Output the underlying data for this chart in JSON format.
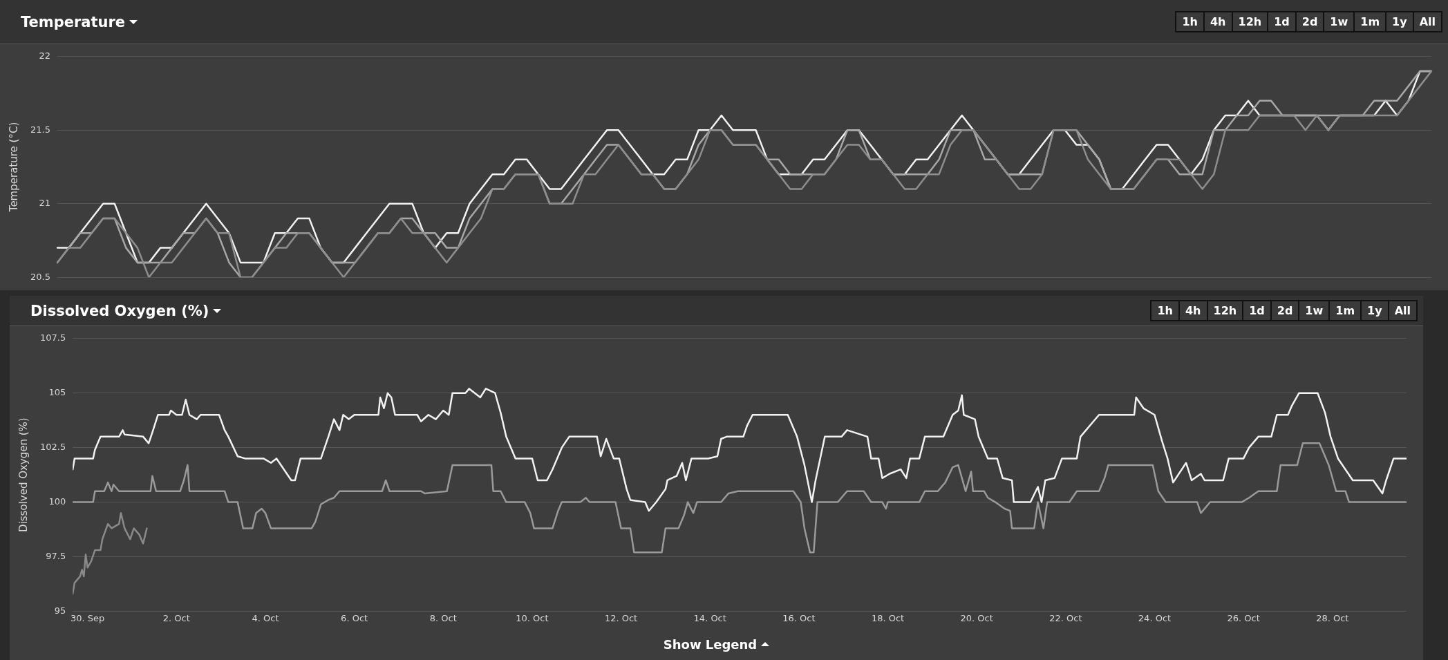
{
  "chart_data": [
    {
      "type": "line",
      "title": "Temperature",
      "ylabel": "Temperature (°C)",
      "annotations": [
        "1h",
        "4h",
        "12h",
        "1d",
        "2d",
        "1w",
        "1m",
        "1y",
        "All"
      ],
      "categories": [
        null,
        null,
        null,
        null,
        null,
        null,
        null,
        null,
        null,
        null,
        null,
        null,
        null,
        null,
        null,
        null,
        null,
        null,
        null,
        null,
        null,
        null,
        null,
        null,
        null,
        null,
        null,
        null,
        null,
        null,
        null,
        null,
        null,
        null,
        null,
        null,
        null,
        null,
        null,
        null,
        null,
        null,
        null,
        null,
        null,
        null,
        null,
        null,
        null,
        null,
        null,
        null,
        null,
        null,
        null,
        null,
        null,
        null,
        null,
        null,
        null,
        null,
        null,
        null,
        null,
        null,
        null,
        null,
        null,
        null,
        null,
        null,
        null,
        null,
        null,
        null,
        null,
        null,
        null,
        null,
        null,
        null,
        null,
        null,
        null,
        null,
        null,
        null,
        null,
        null,
        null,
        null,
        null,
        null,
        null,
        null,
        null,
        null,
        null,
        null,
        null,
        null,
        null,
        null,
        null,
        null,
        null,
        null,
        null,
        null,
        null,
        null,
        null,
        null,
        null,
        null,
        null,
        null,
        null,
        null,
        null
      ],
      "ylim": [
        20.5,
        22
      ],
      "yticks": [
        20.5,
        21,
        21.5,
        22
      ],
      "tick_labels": "y",
      "grid": "y",
      "legend": false,
      "line_style": "solid",
      "series": [
        {
          "color": "#8e8e8e",
          "values": [
            20.6,
            20.7,
            20.7,
            20.8,
            20.9,
            20.9,
            20.8,
            20.7,
            20.5,
            20.6,
            20.6,
            20.7,
            20.8,
            20.9,
            20.8,
            20.8,
            20.5,
            20.5,
            20.6,
            20.7,
            20.7,
            20.8,
            20.8,
            20.7,
            20.6,
            20.5,
            20.6,
            20.7,
            20.8,
            20.8,
            20.9,
            20.8,
            20.8,
            20.7,
            20.6,
            20.7,
            20.8,
            20.9,
            21.1,
            21.1,
            21.2,
            21.2,
            21.2,
            21.0,
            21.0,
            21.0,
            21.2,
            21.2,
            21.3,
            21.4,
            21.3,
            21.2,
            21.2,
            21.1,
            21.1,
            21.2,
            21.3,
            21.5,
            21.5,
            21.4,
            21.4,
            21.4,
            21.3,
            21.2,
            21.1,
            21.1,
            21.2,
            21.2,
            21.3,
            21.4,
            21.4,
            21.3,
            21.3,
            21.2,
            21.1,
            21.1,
            21.2,
            21.2,
            21.4,
            21.5,
            21.5,
            21.4,
            21.3,
            21.2,
            21.1,
            21.1,
            21.2,
            21.5,
            21.5,
            21.5,
            21.3,
            21.2,
            21.1,
            21.1,
            21.1,
            21.2,
            21.3,
            21.3,
            21.3,
            21.2,
            21.1,
            21.2,
            21.5,
            21.5,
            21.5,
            21.6,
            21.6,
            21.6,
            21.6,
            21.5,
            21.6,
            21.5,
            21.6,
            21.6,
            21.6,
            21.6,
            21.6,
            21.6,
            21.7,
            21.8,
            21.9
          ]
        },
        {
          "color": "#a8a8a8",
          "values": [
            20.6,
            20.7,
            20.8,
            20.8,
            20.9,
            20.9,
            20.7,
            20.6,
            20.6,
            20.6,
            20.7,
            20.8,
            20.8,
            20.9,
            20.8,
            20.6,
            20.5,
            20.5,
            20.6,
            20.7,
            20.8,
            20.8,
            20.8,
            20.7,
            20.6,
            20.6,
            20.6,
            20.7,
            20.8,
            20.8,
            20.9,
            20.9,
            20.8,
            20.8,
            20.7,
            20.7,
            20.9,
            21.0,
            21.1,
            21.1,
            21.2,
            21.2,
            21.2,
            21.0,
            21.0,
            21.1,
            21.2,
            21.3,
            21.4,
            21.4,
            21.3,
            21.2,
            21.2,
            21.1,
            21.1,
            21.2,
            21.4,
            21.5,
            21.5,
            21.4,
            21.4,
            21.4,
            21.3,
            21.3,
            21.2,
            21.2,
            21.2,
            21.2,
            21.3,
            21.5,
            21.5,
            21.3,
            21.3,
            21.2,
            21.2,
            21.2,
            21.2,
            21.3,
            21.5,
            21.5,
            21.5,
            21.3,
            21.3,
            21.2,
            21.2,
            21.2,
            21.2,
            21.5,
            21.5,
            21.5,
            21.4,
            21.3,
            21.1,
            21.1,
            21.1,
            21.2,
            21.3,
            21.3,
            21.2,
            21.2,
            21.2,
            21.5,
            21.5,
            21.6,
            21.6,
            21.7,
            21.7,
            21.6,
            21.6,
            21.6,
            21.6,
            21.6,
            21.6,
            21.6,
            21.6,
            21.7,
            21.7,
            21.7,
            21.8,
            21.9,
            21.9
          ]
        },
        {
          "color": "#f2f2f2",
          "values": [
            20.7,
            20.7,
            20.8,
            20.9,
            21.0,
            21.0,
            20.8,
            20.6,
            20.6,
            20.7,
            20.7,
            20.8,
            20.9,
            21.0,
            20.9,
            20.8,
            20.6,
            20.6,
            20.6,
            20.8,
            20.8,
            20.9,
            20.9,
            20.7,
            20.6,
            20.6,
            20.7,
            20.8,
            20.9,
            21.0,
            21.0,
            21.0,
            20.8,
            20.7,
            20.8,
            20.8,
            21.0,
            21.1,
            21.2,
            21.2,
            21.3,
            21.3,
            21.2,
            21.1,
            21.1,
            21.2,
            21.3,
            21.4,
            21.5,
            21.5,
            21.4,
            21.3,
            21.2,
            21.2,
            21.3,
            21.3,
            21.5,
            21.5,
            21.6,
            21.5,
            21.5,
            21.5,
            21.3,
            21.2,
            21.2,
            21.2,
            21.3,
            21.3,
            21.4,
            21.5,
            21.5,
            21.4,
            21.3,
            21.2,
            21.2,
            21.3,
            21.3,
            21.4,
            21.5,
            21.6,
            21.5,
            21.4,
            21.3,
            21.2,
            21.2,
            21.3,
            21.4,
            21.5,
            21.5,
            21.4,
            21.4,
            21.3,
            21.1,
            21.1,
            21.2,
            21.3,
            21.4,
            21.4,
            21.3,
            21.2,
            21.3,
            21.5,
            21.6,
            21.6,
            21.7,
            21.6,
            21.6,
            21.6,
            21.6,
            21.6,
            21.6,
            21.5,
            21.6,
            21.6,
            21.6,
            21.6,
            21.7,
            21.6,
            21.7,
            21.9,
            21.9
          ]
        }
      ]
    },
    {
      "type": "line",
      "title": "Dissolved Oxygen (%)",
      "ylabel": "Dissolved Oxygen (%)",
      "annotations": [
        "1h",
        "4h",
        "12h",
        "1d",
        "2d",
        "1w",
        "1m",
        "1y",
        "All",
        "Show Legend"
      ],
      "xlim": [
        "--09-29T16:00",
        "--10-29T16:00"
      ],
      "xticks": [
        {
          "value": "--09-30",
          "label": "30. Sep"
        },
        {
          "value": "--10-02",
          "label": "2. Oct"
        },
        {
          "value": "--10-04",
          "label": "4. Oct"
        },
        {
          "value": "--10-06",
          "label": "6. Oct"
        },
        {
          "value": "--10-08",
          "label": "8. Oct"
        },
        {
          "value": "--10-10",
          "label": "10. Oct"
        },
        {
          "value": "--10-12",
          "label": "12. Oct"
        },
        {
          "value": "--10-14",
          "label": "14. Oct"
        },
        {
          "value": "--10-16",
          "label": "16. Oct"
        },
        {
          "value": "--10-18",
          "label": "18. Oct"
        },
        {
          "value": "--10-20",
          "label": "20. Oct"
        },
        {
          "value": "--10-22",
          "label": "22. Oct"
        },
        {
          "value": "--10-24",
          "label": "24. Oct"
        },
        {
          "value": "--10-26",
          "label": "26. Oct"
        },
        {
          "value": "--10-28",
          "label": "28. Oct"
        }
      ],
      "ylim": [
        95,
        107.5
      ],
      "yticks": [
        95,
        97.5,
        100,
        102.5,
        105,
        107.5
      ],
      "grid": "y",
      "legend": false,
      "line_style": "solid",
      "series": [
        {
          "color": "#8a8a8a",
          "x": [
            "--09-29T16:00",
            "--09-29T17:00",
            "--09-29T20:00",
            "--09-29T21:00",
            "--09-29T22:00",
            "--09-29T23:00",
            "--09-30T00:00",
            "--09-30T02:00",
            "--09-30T04:00",
            "--09-30T07:00",
            "--09-30T08:00",
            "--09-30T11:00",
            "--09-30T13:00",
            "--09-30T17:00",
            "--09-30T18:00",
            "--09-30T20:00",
            "--09-30T23:00",
            "--10-01T01:00",
            "--10-01T04:00",
            "--10-01T06:00",
            "--10-01T08:00"
          ],
          "values": [
            95.8,
            96.3,
            96.6,
            96.9,
            96.6,
            97.6,
            97,
            97.3,
            97.8,
            97.8,
            98.3,
            99,
            98.8,
            99,
            99.5,
            98.8,
            98.3,
            98.8,
            98.5,
            98.1,
            98.8
          ]
        },
        {
          "color": "#9a9a9a",
          "x": [
            "--09-29T16:00",
            "--09-30T03:00",
            "--09-30T04:00",
            "--09-30T09:00",
            "--09-30T11:00",
            "--09-30T13:00",
            "--09-30T14:00",
            "--09-30T17:00",
            "--10-01T10:00",
            "--10-01T11:00",
            "--10-01T13:00",
            "--10-02T02:00",
            "--10-02T04:00",
            "--10-02T06:00",
            "--10-02T07:00",
            "--10-03T02:00",
            "--10-03T04:00",
            "--10-03T09:00",
            "--10-03T12:00",
            "--10-03T17:00",
            "--10-03T19:00",
            "--10-03T22:00",
            "--10-04T00:00",
            "--10-04T03:00",
            "--10-05T01:00",
            "--10-05T03:00",
            "--10-05T06:00",
            "--10-05T10:00",
            "--10-05T13:00",
            "--10-05T16:00",
            "--10-06T15:00",
            "--10-06T17:00",
            "--10-06T19:00",
            "--10-07T12:00",
            "--10-07T14:00",
            "--10-08T02:00",
            "--10-08T05:00",
            "--10-09T02:00",
            "--10-09T03:00",
            "--10-09T07:00",
            "--10-09T10:00",
            "--10-09T20:00",
            "--10-09T23:00",
            "--10-10T01:00",
            "--10-10T11:00",
            "--10-10T14:00",
            "--10-10T16:00",
            "--10-11T02:00",
            "--10-11T05:00",
            "--10-11T07:00",
            "--10-11T21:00",
            "--10-12T00:00",
            "--10-12T05:00",
            "--10-12T07:00",
            "--10-12T22:00",
            "--10-13T00:00",
            "--10-13T07:00",
            "--10-13T10:00",
            "--10-13T12:00",
            "--10-13T15:00",
            "--10-13T17:00",
            "--10-13T23:00",
            "--10-14T06:00",
            "--10-14T10:00",
            "--10-14T15:00",
            "--10-15T21:00",
            "--10-16T01:00",
            "--10-16T03:00",
            "--10-16T06:00",
            "--10-16T08:00",
            "--10-16T10:00",
            "--10-16T21:00",
            "--10-17T02:00",
            "--10-17T11:00",
            "--10-17T15:00",
            "--10-17T21:00",
            "--10-17T23:00",
            "--10-18T00:00",
            "--10-18T17:00",
            "--10-18T20:00",
            "--10-19T03:00",
            "--10-19T07:00",
            "--10-19T11:00",
            "--10-19T14:00",
            "--10-19T18:00",
            "--10-19T21:00",
            "--10-19T22:00",
            "--10-20T04:00",
            "--10-20T06:00",
            "--10-20T10:00",
            "--10-20T15:00",
            "--10-20T18:00",
            "--10-20T19:00",
            "--10-21T07:00",
            "--10-21T09:00",
            "--10-21T12:00",
            "--10-21T14:00",
            "--10-22T02:00",
            "--10-22T06:00",
            "--10-22T18:00",
            "--10-22T21:00",
            "--10-22T23:00",
            "--10-23T23:00",
            "--10-24T02:00",
            "--10-24T06:00",
            "--10-24T23:00",
            "--10-25T01:00",
            "--10-25T06:00",
            "--10-25T23:00",
            "--10-26T03:00",
            "--10-26T08:00",
            "--10-26T18:00",
            "--10-26T20:00",
            "--10-27T05:00",
            "--10-27T08:00",
            "--10-27T17:00",
            "--10-27T22:00",
            "--10-28T02:00",
            "--10-28T07:00",
            "--10-28T09:00",
            "--10-29T16:00"
          ],
          "values": [
            100,
            100,
            100.5,
            100.5,
            100.9,
            100.5,
            100.8,
            100.5,
            100.5,
            101.2,
            100.5,
            100.5,
            101,
            101.7,
            100.5,
            100.5,
            100,
            100,
            98.8,
            98.8,
            99.5,
            99.7,
            99.5,
            98.8,
            98.8,
            99.1,
            99.9,
            100.1,
            100.2,
            100.5,
            100.5,
            101,
            100.5,
            100.5,
            100.4,
            100.5,
            101.7,
            101.7,
            100.5,
            100.5,
            100,
            100,
            99.5,
            98.8,
            98.8,
            99.6,
            100,
            100,
            100.2,
            100,
            100,
            98.8,
            98.8,
            97.7,
            97.7,
            98.8,
            98.8,
            99.4,
            100,
            99.5,
            100,
            100,
            100,
            100.4,
            100.5,
            100.5,
            100,
            98.8,
            97.7,
            97.7,
            100,
            100,
            100.5,
            100.5,
            100,
            100,
            99.7,
            100,
            100,
            100.5,
            100.5,
            100.9,
            101.6,
            101.7,
            100.5,
            101.4,
            100.5,
            100.5,
            100.2,
            100,
            99.7,
            99.6,
            98.8,
            98.8,
            100,
            98.8,
            100,
            100,
            100.5,
            100.5,
            101.1,
            101.7,
            101.7,
            100.5,
            100,
            100,
            99.5,
            100,
            100,
            100.2,
            100.5,
            100.5,
            101.7,
            101.7,
            102.7,
            102.7,
            101.7,
            100.5,
            100.5,
            100,
            100
          ]
        },
        {
          "color": "#f2f2f2",
          "x": [
            "--09-29T16:00",
            "--09-29T17:00",
            "--09-30T03:00",
            "--09-30T04:00",
            "--09-30T07:00",
            "--09-30T17:00",
            "--09-30T19:00",
            "--09-30T20:00",
            "--10-01T06:00",
            "--10-01T09:00",
            "--10-01T11:00",
            "--10-01T14:00",
            "--10-01T20:00",
            "--10-01T21:00",
            "--10-02T00:00",
            "--10-02T03:00",
            "--10-02T05:00",
            "--10-02T07:00",
            "--10-02T11:00",
            "--10-02T13:00",
            "--10-02T23:00",
            "--10-03T02:00",
            "--10-03T04:00",
            "--10-03T09:00",
            "--10-03T13:00",
            "--10-03T23:00",
            "--10-04T03:00",
            "--10-04T06:00",
            "--10-04T10:00",
            "--10-04T14:00",
            "--10-04T16:00",
            "--10-04T19:00",
            "--10-05T06:00",
            "--10-05T10:00",
            "--10-05T13:00",
            "--10-05T16:00",
            "--10-05T18:00",
            "--10-05T21:00",
            "--10-06T00:00",
            "--10-06T13:00",
            "--10-06T14:00",
            "--10-06T16:00",
            "--10-06T18:00",
            "--10-06T20:00",
            "--10-06T22:00",
            "--10-07T10:00",
            "--10-07T12:00",
            "--10-07T16:00",
            "--10-07T20:00",
            "--10-08T00:00",
            "--10-08T03:00",
            "--10-08T05:00",
            "--10-08T12:00",
            "--10-08T14:00",
            "--10-08T20:00",
            "--10-08T23:00",
            "--10-09T04:00",
            "--10-09T07:00",
            "--10-09T10:00",
            "--10-09T15:00",
            "--10-10T00:00",
            "--10-10T03:00",
            "--10-10T08:00",
            "--10-10T11:00",
            "--10-10T16:00",
            "--10-10T20:00",
            "--10-11T11:00",
            "--10-11T13:00",
            "--10-11T16:00",
            "--10-11T20:00",
            "--10-11T23:00",
            "--10-12T03:00",
            "--10-12T05:00",
            "--10-12T13:00",
            "--10-12T15:00",
            "--10-12T19:00",
            "--10-13T00:00",
            "--10-13T01:00",
            "--10-13T06:00",
            "--10-13T09:00",
            "--10-13T11:00",
            "--10-13T14:00",
            "--10-13T23:00",
            "--10-14T04:00",
            "--10-14T06:00",
            "--10-14T09:00",
            "--10-14T18:00",
            "--10-14T20:00",
            "--10-14T23:00",
            "--10-15T18:00",
            "--10-15T23:00",
            "--10-16T03:00",
            "--10-16T07:00",
            "--10-16T09:00",
            "--10-16T14:00",
            "--10-16T23:00",
            "--10-17T02:00",
            "--10-17T13:00",
            "--10-17T15:00",
            "--10-17T19:00",
            "--10-17T21:00",
            "--10-18T01:00",
            "--10-18T07:00",
            "--10-18T10:00",
            "--10-18T12:00",
            "--10-18T17:00",
            "--10-18T20:00",
            "--10-19T06:00",
            "--10-19T08:00",
            "--10-19T11:00",
            "--10-19T14:00",
            "--10-19T16:00",
            "--10-19T17:00",
            "--10-19T23:00",
            "--10-20T01:00",
            "--10-20T06:00",
            "--10-20T11:00",
            "--10-20T14:00",
            "--10-20T19:00",
            "--10-20T20:00",
            "--10-21T05:00",
            "--10-21T09:00",
            "--10-21T11:00",
            "--10-21T13:00",
            "--10-21T18:00",
            "--10-21T22:00",
            "--10-22T06:00",
            "--10-22T08:00",
            "--10-22T18:00",
            "--10-23T13:00",
            "--10-23T14:00",
            "--10-23T18:00",
            "--10-24T00:00",
            "--10-24T04:00",
            "--10-24T07:00",
            "--10-24T10:00",
            "--10-24T17:00",
            "--10-24T20:00",
            "--10-25T01:00",
            "--10-25T03:00",
            "--10-25T13:00",
            "--10-25T16:00",
            "--10-26T00:00",
            "--10-26T03:00",
            "--10-26T08:00",
            "--10-26T15:00",
            "--10-26T18:00",
            "--10-27T00:00",
            "--10-27T02:00",
            "--10-27T06:00",
            "--10-27T16:00",
            "--10-27T20:00",
            "--10-27T23:00",
            "--10-28T03:00",
            "--10-28T07:00",
            "--10-28T11:00",
            "--10-28T22:00",
            "--10-29T03:00",
            "--10-29T05:00",
            "--10-29T09:00",
            "--10-29T16:00"
          ],
          "values": [
            101.5,
            102,
            102,
            102.4,
            103,
            103,
            103.3,
            103.1,
            103,
            102.7,
            103.2,
            104,
            104,
            104.2,
            104,
            104,
            104.7,
            104,
            103.8,
            104,
            104,
            103.3,
            103,
            102.1,
            102,
            102,
            101.8,
            102,
            101.5,
            101,
            101,
            102,
            102,
            103,
            103.8,
            103.3,
            104,
            103.8,
            104,
            104,
            104.8,
            104.3,
            105,
            104.8,
            104,
            104,
            103.7,
            104,
            103.8,
            104.2,
            104,
            105,
            105,
            105.2,
            104.8,
            105.2,
            105,
            104.1,
            103,
            102,
            102,
            101,
            101,
            101.5,
            102.5,
            103,
            103,
            102.1,
            102.9,
            102,
            102,
            100.6,
            100.1,
            100,
            99.6,
            100,
            100.6,
            101,
            101.2,
            101.8,
            101,
            102,
            102,
            102.1,
            102.9,
            103,
            103,
            103.5,
            104,
            104,
            103,
            101.7,
            100,
            101,
            103,
            103,
            103.3,
            103,
            102,
            102,
            101.1,
            101.3,
            101.5,
            101.1,
            102,
            102,
            103,
            103,
            103.4,
            104,
            104.2,
            104.9,
            104,
            103.8,
            103,
            102,
            102,
            101.1,
            101,
            100,
            100,
            100.7,
            100,
            101,
            101.1,
            102,
            102,
            103,
            104,
            104,
            104.8,
            104.3,
            104,
            102.8,
            102,
            100.9,
            101.8,
            101,
            101.3,
            101,
            101,
            102,
            102,
            102.5,
            103,
            103,
            104,
            104,
            104.4,
            105,
            105,
            104.1,
            103,
            102,
            101.5,
            101,
            101,
            100.4,
            101,
            102,
            102
          ]
        }
      ]
    }
  ]
}
